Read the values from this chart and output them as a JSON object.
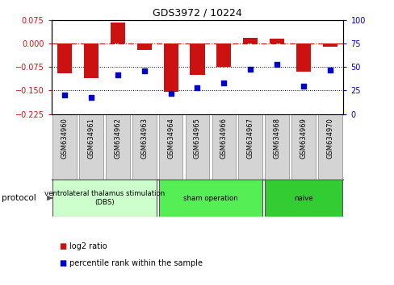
{
  "title": "GDS3972 / 10224",
  "samples": [
    "GSM634960",
    "GSM634961",
    "GSM634962",
    "GSM634963",
    "GSM634964",
    "GSM634965",
    "GSM634966",
    "GSM634967",
    "GSM634968",
    "GSM634969",
    "GSM634970"
  ],
  "log2_ratio": [
    -0.095,
    -0.11,
    0.068,
    -0.02,
    -0.155,
    -0.1,
    -0.075,
    0.018,
    0.015,
    -0.09,
    -0.01
  ],
  "percentile_rank": [
    20,
    18,
    42,
    46,
    22,
    28,
    33,
    48,
    53,
    30,
    47
  ],
  "bar_color": "#cc1111",
  "dot_color": "#0000cc",
  "ylim_left": [
    -0.225,
    0.075
  ],
  "ylim_right": [
    0,
    100
  ],
  "yticks_left": [
    0.075,
    0,
    -0.075,
    -0.15,
    -0.225
  ],
  "yticks_right": [
    100,
    75,
    50,
    25,
    0
  ],
  "dotted_lines": [
    -0.075,
    -0.15
  ],
  "protocol_groups": [
    {
      "label": "ventrolateral thalamus stimulation\n(DBS)",
      "start": 0,
      "end": 3,
      "color": "#ccffcc"
    },
    {
      "label": "sham operation",
      "start": 4,
      "end": 7,
      "color": "#55ee55"
    },
    {
      "label": "naive",
      "start": 8,
      "end": 10,
      "color": "#33cc33"
    }
  ],
  "legend_items": [
    {
      "label": "log2 ratio",
      "color": "#cc1111"
    },
    {
      "label": "percentile rank within the sample",
      "color": "#0000cc"
    }
  ],
  "protocol_label": "protocol"
}
